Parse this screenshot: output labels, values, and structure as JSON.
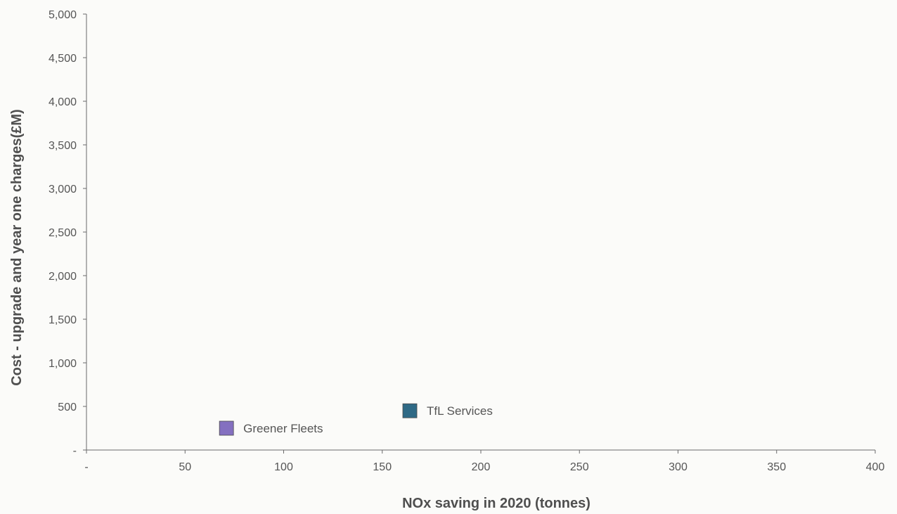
{
  "chart_data": {
    "type": "scatter",
    "title": "",
    "xlabel": "NOx saving in 2020 (tonnes)",
    "ylabel": "Cost - upgrade and year one charges(£M)",
    "xlim": [
      0,
      400
    ],
    "ylim": [
      0,
      5000
    ],
    "x_ticks": [
      {
        "value": 0,
        "label": "-"
      },
      {
        "value": 50,
        "label": "50"
      },
      {
        "value": 100,
        "label": "100"
      },
      {
        "value": 150,
        "label": "150"
      },
      {
        "value": 200,
        "label": "200"
      },
      {
        "value": 250,
        "label": "250"
      },
      {
        "value": 300,
        "label": "300"
      },
      {
        "value": 350,
        "label": "350"
      },
      {
        "value": 400,
        "label": "400"
      }
    ],
    "y_ticks": [
      {
        "value": 0,
        "label": "-"
      },
      {
        "value": 500,
        "label": "500"
      },
      {
        "value": 1000,
        "label": "1,000"
      },
      {
        "value": 1500,
        "label": "1,500"
      },
      {
        "value": 2000,
        "label": "2,000"
      },
      {
        "value": 2500,
        "label": "2,500"
      },
      {
        "value": 3000,
        "label": "3,000"
      },
      {
        "value": 3500,
        "label": "3,500"
      },
      {
        "value": 4000,
        "label": "4,000"
      },
      {
        "value": 4500,
        "label": "4,500"
      },
      {
        "value": 5000,
        "label": "5,000"
      }
    ],
    "grid": false,
    "points": [
      {
        "name": "Greener Fleets",
        "x": 71,
        "y": 250,
        "color": "#8470c0"
      },
      {
        "name": "TfL Services",
        "x": 164,
        "y": 450,
        "color": "#2f6a86"
      }
    ]
  }
}
